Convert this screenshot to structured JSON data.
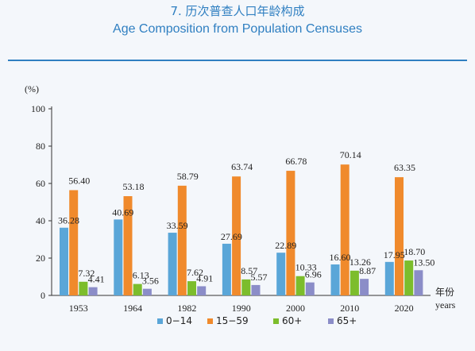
{
  "header": {
    "title_cn": "7. 历次普查人口年龄构成",
    "title_en": "Age Composition from Population Censuses"
  },
  "colors": {
    "accent": "#2f7fc1",
    "series": [
      "#5aa6d8",
      "#f08a2c",
      "#7cbd2c",
      "#8b8dc8"
    ]
  },
  "chart_data": {
    "type": "bar",
    "title": "",
    "ylabel": "(%)",
    "xlabel_cn": "年份",
    "xlabel_en": "years",
    "ylim": [
      0,
      100
    ],
    "yticks": [
      0,
      20,
      40,
      60,
      80,
      100
    ],
    "grid": false,
    "legend_position": "bottom",
    "categories": [
      "1953",
      "1964",
      "1982",
      "1990",
      "2000",
      "2010",
      "2020"
    ],
    "series": [
      {
        "name": "0−14",
        "values": [
          36.28,
          40.69,
          33.59,
          27.69,
          22.89,
          16.6,
          17.95
        ]
      },
      {
        "name": "15−59",
        "values": [
          56.4,
          53.18,
          58.79,
          63.74,
          66.78,
          70.14,
          63.35
        ]
      },
      {
        "name": "60+",
        "values": [
          7.32,
          6.13,
          7.62,
          8.57,
          10.33,
          13.26,
          18.7
        ]
      },
      {
        "name": "65+",
        "values": [
          4.41,
          3.56,
          4.91,
          5.57,
          6.96,
          8.87,
          13.5
        ]
      }
    ]
  }
}
